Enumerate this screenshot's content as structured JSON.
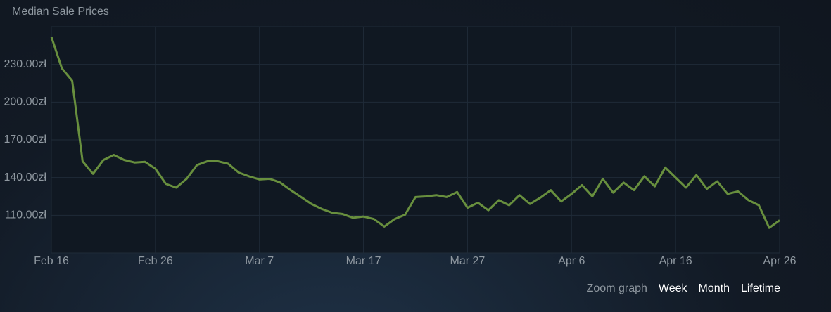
{
  "chart_data": {
    "type": "line",
    "title": "Median Sale Prices",
    "x": [
      "Feb 16",
      "Feb 17",
      "Feb 18",
      "Feb 19",
      "Feb 20",
      "Feb 21",
      "Feb 22",
      "Feb 23",
      "Feb 24",
      "Feb 25",
      "Feb 26",
      "Feb 27",
      "Feb 28",
      "Feb 29",
      "Mar 1",
      "Mar 2",
      "Mar 3",
      "Mar 4",
      "Mar 5",
      "Mar 6",
      "Mar 7",
      "Mar 8",
      "Mar 9",
      "Mar 10",
      "Mar 11",
      "Mar 12",
      "Mar 13",
      "Mar 14",
      "Mar 15",
      "Mar 16",
      "Mar 17",
      "Mar 18",
      "Mar 19",
      "Mar 20",
      "Mar 21",
      "Mar 22",
      "Mar 23",
      "Mar 24",
      "Mar 25",
      "Mar 26",
      "Mar 27",
      "Mar 28",
      "Mar 29",
      "Mar 30",
      "Mar 31",
      "Apr 1",
      "Apr 2",
      "Apr 3",
      "Apr 4",
      "Apr 5",
      "Apr 6",
      "Apr 7",
      "Apr 8",
      "Apr 9",
      "Apr 10",
      "Apr 11",
      "Apr 12",
      "Apr 13",
      "Apr 14",
      "Apr 15",
      "Apr 16",
      "Apr 17",
      "Apr 18",
      "Apr 19",
      "Apr 20",
      "Apr 21",
      "Apr 22",
      "Apr 23",
      "Apr 24",
      "Apr 25",
      "Apr 26"
    ],
    "series": [
      {
        "color": "#688f3e",
        "values": [
          252,
          227,
          217,
          153,
          143,
          154,
          158,
          154,
          152,
          152.5,
          147,
          135,
          132,
          139,
          150,
          153,
          153,
          151,
          144,
          141,
          138.5,
          139,
          136,
          130,
          124.5,
          119,
          115,
          112,
          111,
          108,
          109,
          107,
          101,
          107,
          110.5,
          124.5,
          125,
          126,
          124.5,
          128.5,
          116,
          120,
          114,
          122,
          118,
          126,
          119,
          124,
          130,
          121,
          127,
          134,
          125,
          139,
          128,
          136,
          130,
          141,
          133,
          148,
          140,
          132,
          142,
          131,
          137,
          127,
          129,
          122,
          118,
          100,
          106
        ]
      }
    ],
    "xlim": [
      "Feb 16",
      "Apr 26"
    ],
    "xticks": [
      "Feb 16",
      "Feb 26",
      "Mar 7",
      "Mar 17",
      "Mar 27",
      "Apr 6",
      "Apr 16",
      "Apr 26"
    ],
    "ylim": [
      80,
      260
    ],
    "yticks": [
      {
        "value": 110,
        "label": "110.00zł"
      },
      {
        "value": 140,
        "label": "140.00zł"
      },
      {
        "value": 170,
        "label": "170.00zł"
      },
      {
        "value": 200,
        "label": "200.00zł"
      },
      {
        "value": 230,
        "label": "230.00zł"
      }
    ],
    "grid": true
  },
  "zoom": {
    "label": "Zoom graph",
    "options": [
      "Week",
      "Month",
      "Lifetime"
    ]
  }
}
